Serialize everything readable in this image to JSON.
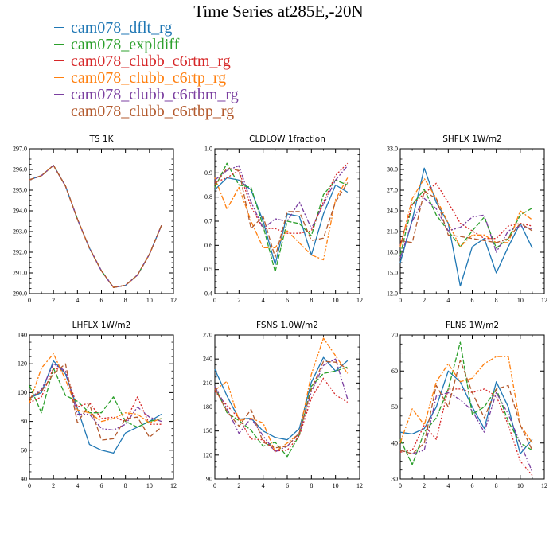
{
  "title": "Time Series at285E,-20N",
  "legend": [
    {
      "name": "cam078_dflt_rg",
      "color": "#1f77b4"
    },
    {
      "name": "cam078_expldiff",
      "color": "#2ca02c"
    },
    {
      "name": "cam078_clubb_c6rtm_rg",
      "color": "#d62728"
    },
    {
      "name": "cam078_clubb_c6rtp_rg",
      "color": "#ff7f0e"
    },
    {
      "name": "cam078_clubb_c6rtbm_rg",
      "color": "#7b3fa0"
    },
    {
      "name": "cam078_clubb_c6rtbp_rg",
      "color": "#b35a2e"
    }
  ],
  "chart_data": [
    {
      "type": "line",
      "title": "TS   1K",
      "x": [
        0,
        1,
        2,
        3,
        4,
        5,
        6,
        7,
        8,
        9,
        10,
        11
      ],
      "xlim": [
        0,
        12
      ],
      "xticks": [
        0,
        2,
        4,
        6,
        8,
        10,
        12
      ],
      "ylim": [
        290,
        297
      ],
      "yticks": [
        "290.0",
        "291.0",
        "292.0",
        "293.0",
        "294.0",
        "295.0",
        "296.0",
        "297.0"
      ],
      "series": [
        {
          "name": "cam078_dflt_rg",
          "values": [
            295.5,
            295.7,
            296.2,
            295.2,
            293.6,
            292.2,
            291.1,
            290.3,
            290.4,
            290.9,
            291.9,
            293.3
          ]
        },
        {
          "name": "cam078_expldiff",
          "values": [
            295.5,
            295.7,
            296.2,
            295.2,
            293.6,
            292.2,
            291.1,
            290.3,
            290.4,
            290.9,
            291.9,
            293.3
          ]
        },
        {
          "name": "cam078_clubb_c6rtm_rg",
          "values": [
            295.5,
            295.7,
            296.2,
            295.2,
            293.6,
            292.2,
            291.1,
            290.3,
            290.4,
            290.9,
            291.9,
            293.3
          ]
        },
        {
          "name": "cam078_clubb_c6rtp_rg",
          "values": [
            295.5,
            295.7,
            296.2,
            295.2,
            293.6,
            292.2,
            291.1,
            290.3,
            290.4,
            290.9,
            291.9,
            293.3
          ]
        },
        {
          "name": "cam078_clubb_c6rtbm_rg",
          "values": [
            295.5,
            295.7,
            296.2,
            295.2,
            293.6,
            292.2,
            291.1,
            290.3,
            290.4,
            290.9,
            291.9,
            293.3
          ]
        },
        {
          "name": "cam078_clubb_c6rtbp_rg",
          "values": [
            295.5,
            295.7,
            296.2,
            295.2,
            293.6,
            292.2,
            291.1,
            290.3,
            290.4,
            290.9,
            291.9,
            293.3
          ]
        }
      ]
    },
    {
      "type": "line",
      "title": "CLDLOW   1fraction",
      "x": [
        0,
        1,
        2,
        3,
        4,
        5,
        6,
        7,
        8,
        9,
        10,
        11
      ],
      "xlim": [
        0,
        12
      ],
      "xticks": [
        0,
        2,
        4,
        6,
        8,
        10,
        12
      ],
      "ylim": [
        0.4,
        1.0
      ],
      "yticks": [
        "0.4",
        "0.5",
        "0.6",
        "0.7",
        "0.8",
        "0.9",
        "1.0"
      ],
      "series": [
        {
          "name": "cam078_dflt_rg",
          "values": [
            0.83,
            0.88,
            0.87,
            0.83,
            0.7,
            0.52,
            0.73,
            0.72,
            0.56,
            0.73,
            0.85,
            0.82
          ]
        },
        {
          "name": "cam078_expldiff",
          "values": [
            0.84,
            0.94,
            0.85,
            0.84,
            0.68,
            0.49,
            0.7,
            0.69,
            0.64,
            0.81,
            0.87,
            0.85
          ]
        },
        {
          "name": "cam078_clubb_c6rtm_rg",
          "values": [
            0.86,
            0.88,
            0.91,
            0.76,
            0.67,
            0.67,
            0.65,
            0.65,
            0.66,
            0.78,
            0.89,
            0.94
          ]
        },
        {
          "name": "cam078_clubb_c6rtp_rg",
          "values": [
            0.88,
            0.75,
            0.84,
            0.7,
            0.59,
            0.59,
            0.66,
            0.61,
            0.56,
            0.54,
            0.79,
            0.88
          ]
        },
        {
          "name": "cam078_clubb_c6rtbm_rg",
          "values": [
            0.87,
            0.91,
            0.93,
            0.78,
            0.67,
            0.71,
            0.7,
            0.78,
            0.67,
            0.77,
            0.87,
            0.93
          ]
        },
        {
          "name": "cam078_clubb_c6rtbp_rg",
          "values": [
            0.85,
            0.92,
            0.91,
            0.67,
            0.72,
            0.55,
            0.74,
            0.74,
            0.62,
            0.63,
            0.78,
            0.86
          ]
        }
      ]
    },
    {
      "type": "line",
      "title": "SHFLX   1W/m2",
      "x": [
        0,
        1,
        2,
        3,
        4,
        5,
        6,
        7,
        8,
        9,
        10,
        11
      ],
      "xlim": [
        0,
        12
      ],
      "xticks": [
        0,
        2,
        4,
        6,
        8,
        10,
        12
      ],
      "ylim": [
        12,
        33
      ],
      "yticks": [
        "12.0",
        "15.0",
        "18.0",
        "21.0",
        "24.0",
        "27.0",
        "30.0",
        "33.0"
      ],
      "series": [
        {
          "name": "cam078_dflt_rg",
          "values": [
            16.5,
            22.7,
            30.2,
            25.2,
            22.2,
            13.1,
            18.8,
            20.0,
            15.0,
            18.8,
            22.2,
            18.6
          ]
        },
        {
          "name": "cam078_expldiff",
          "values": [
            17.6,
            24.9,
            27.1,
            23.4,
            21.1,
            18.8,
            21.1,
            23.1,
            18.6,
            20.0,
            23.4,
            24.4
          ]
        },
        {
          "name": "cam078_clubb_c6rtm_rg",
          "values": [
            19.0,
            24.9,
            26.5,
            28.0,
            25.2,
            22.2,
            21.1,
            20.0,
            20.0,
            21.8,
            22.2,
            21.8
          ]
        },
        {
          "name": "cam078_clubb_c6rtp_rg",
          "values": [
            18.8,
            25.8,
            28.7,
            25.8,
            22.2,
            18.8,
            20.5,
            20.5,
            19.4,
            19.4,
            24.0,
            22.7
          ]
        },
        {
          "name": "cam078_clubb_c6rtbm_rg",
          "values": [
            17.2,
            22.5,
            25.8,
            24.3,
            21.1,
            21.6,
            23.1,
            23.4,
            18.0,
            21.1,
            21.8,
            21.4
          ]
        },
        {
          "name": "cam078_clubb_c6rtbp_rg",
          "values": [
            19.7,
            19.4,
            26.8,
            25.8,
            20.5,
            20.3,
            20.0,
            19.7,
            19.4,
            20.0,
            22.2,
            21.1
          ]
        }
      ]
    },
    {
      "type": "line",
      "title": "LHFLX   1W/m2",
      "x": [
        0,
        1,
        2,
        3,
        4,
        5,
        6,
        7,
        8,
        9,
        10,
        11
      ],
      "xlim": [
        0,
        12
      ],
      "xticks": [
        0,
        2,
        4,
        6,
        8,
        10,
        12
      ],
      "ylim": [
        40,
        140
      ],
      "yticks": [
        "40",
        "60",
        "80",
        "100",
        "120",
        "140"
      ],
      "series": [
        {
          "name": "cam078_dflt_rg",
          "values": [
            96,
            100,
            122,
            113,
            89,
            64,
            60,
            58,
            72,
            76,
            80,
            85
          ]
        },
        {
          "name": "cam078_expldiff",
          "values": [
            105,
            86,
            117,
            98,
            94,
            86,
            86,
            97,
            80,
            76,
            80,
            82
          ]
        },
        {
          "name": "cam078_clubb_c6rtm_rg",
          "values": [
            93,
            97,
            117,
            115,
            90,
            93,
            82,
            83,
            80,
            97,
            78,
            78
          ]
        },
        {
          "name": "cam078_clubb_c6rtp_rg",
          "values": [
            93,
            117,
            127,
            109,
            88,
            86,
            80,
            82,
            86,
            85,
            79,
            82
          ]
        },
        {
          "name": "cam078_clubb_c6rtbm_rg",
          "values": [
            96,
            102,
            120,
            115,
            85,
            85,
            75,
            74,
            78,
            90,
            83,
            80
          ]
        },
        {
          "name": "cam078_clubb_c6rtbp_rg",
          "values": [
            96,
            101,
            113,
            120,
            79,
            92,
            67,
            68,
            82,
            83,
            69,
            76
          ]
        }
      ]
    },
    {
      "type": "line",
      "title": "FSNS   1.0W/m2",
      "x": [
        0,
        1,
        2,
        3,
        4,
        5,
        6,
        7,
        8,
        9,
        10,
        11
      ],
      "xlim": [
        0,
        12
      ],
      "xticks": [
        0,
        2,
        4,
        6,
        8,
        10,
        12
      ],
      "ylim": [
        90,
        270
      ],
      "yticks": [
        "90",
        "120",
        "150",
        "180",
        "210",
        "240",
        "270"
      ],
      "series": [
        {
          "name": "cam078_dflt_rg",
          "values": [
            227,
            194,
            165,
            166,
            150,
            142,
            139,
            153,
            211,
            242,
            225,
            238
          ]
        },
        {
          "name": "cam078_expldiff",
          "values": [
            206,
            173,
            163,
            151,
            131,
            136,
            118,
            145,
            206,
            222,
            225,
            230
          ]
        },
        {
          "name": "cam078_clubb_c6rtm_rg",
          "values": [
            200,
            182,
            166,
            140,
            139,
            125,
            126,
            144,
            191,
            216,
            195,
            186
          ]
        },
        {
          "name": "cam078_clubb_c6rtp_rg",
          "values": [
            201,
            212,
            163,
            166,
            160,
            124,
            135,
            147,
            221,
            266,
            244,
            222
          ]
        },
        {
          "name": "cam078_clubb_c6rtbm_rg",
          "values": [
            206,
            178,
            147,
            166,
            144,
            124,
            131,
            147,
            199,
            232,
            240,
            190
          ]
        },
        {
          "name": "cam078_clubb_c6rtbp_rg",
          "values": [
            203,
            175,
            156,
            177,
            136,
            129,
            131,
            148,
            202,
            237,
            236,
            228
          ]
        }
      ]
    },
    {
      "type": "line",
      "title": "FLNS   1W/m2",
      "x": [
        0,
        1,
        2,
        3,
        4,
        5,
        6,
        7,
        8,
        9,
        10,
        11
      ],
      "xlim": [
        0,
        12
      ],
      "xticks": [
        0,
        2,
        4,
        6,
        8,
        10,
        12
      ],
      "ylim": [
        30,
        70
      ],
      "yticks": [
        "30",
        "40",
        "50",
        "60",
        "70"
      ],
      "series": [
        {
          "name": "cam078_dflt_rg",
          "values": [
            43,
            42.5,
            44,
            50,
            60,
            57,
            50,
            44,
            57,
            50,
            37,
            41
          ]
        },
        {
          "name": "cam078_expldiff",
          "values": [
            41,
            34,
            43,
            47,
            55,
            68,
            48,
            50,
            55,
            46,
            40,
            38
          ]
        },
        {
          "name": "cam078_clubb_c6rtm_rg",
          "values": [
            37.5,
            38,
            45,
            41,
            55,
            55,
            54,
            55,
            53,
            45,
            35,
            31
          ]
        },
        {
          "name": "cam078_clubb_c6rtp_rg",
          "values": [
            40,
            49.5,
            45,
            57,
            62,
            57,
            58,
            62,
            64,
            64,
            45,
            40
          ]
        },
        {
          "name": "cam078_clubb_c6rtbm_rg",
          "values": [
            38,
            37,
            38,
            53,
            54,
            52,
            49,
            43,
            54,
            48,
            40,
            32
          ]
        },
        {
          "name": "cam078_clubb_c6rtbp_rg",
          "values": [
            38,
            37,
            40,
            56,
            50,
            63,
            54,
            47,
            55,
            56,
            45,
            38
          ]
        }
      ]
    }
  ]
}
